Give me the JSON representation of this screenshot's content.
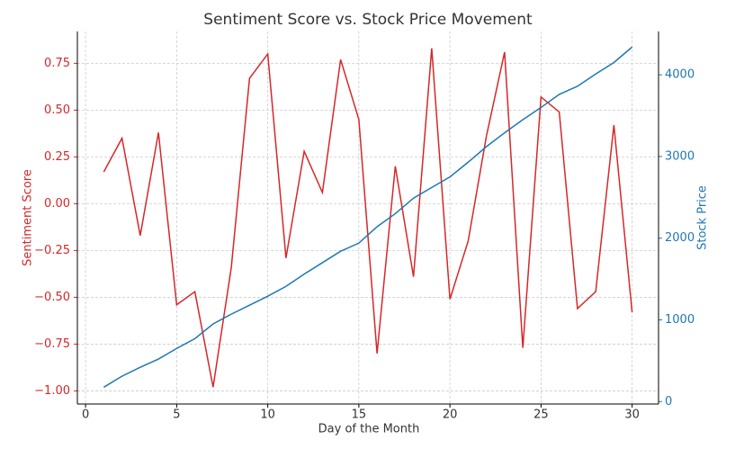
{
  "chart_data": {
    "type": "line",
    "title": "Sentiment Score vs. Stock Price Movement",
    "x_label": "Day of the Month",
    "y_label": "Sentiment Score",
    "y2_label": "Stock Price",
    "x": [
      1,
      2,
      3,
      4,
      5,
      6,
      7,
      8,
      9,
      10,
      11,
      12,
      13,
      14,
      15,
      16,
      17,
      18,
      19,
      20,
      21,
      22,
      23,
      24,
      25,
      26,
      27,
      28,
      29,
      30
    ],
    "series": [
      {
        "name": "Sentiment Score",
        "color": "#d62728",
        "axis": "y",
        "values": [
          0.17,
          0.35,
          -0.17,
          0.38,
          -0.54,
          -0.47,
          -0.98,
          -0.34,
          0.67,
          0.8,
          -0.29,
          0.28,
          0.06,
          0.77,
          0.45,
          -0.8,
          0.2,
          -0.39,
          0.83,
          -0.51,
          -0.2,
          0.36,
          0.81,
          -0.77,
          0.57,
          0.49,
          -0.56,
          -0.47,
          0.42,
          -0.58
        ]
      },
      {
        "name": "Stock Price",
        "color": "#1f77b4",
        "axis": "y2",
        "values": [
          176,
          310,
          420,
          520,
          650,
          770,
          950,
          1070,
          1180,
          1290,
          1410,
          1560,
          1700,
          1840,
          1940,
          2140,
          2300,
          2490,
          2620,
          2750,
          2930,
          3120,
          3290,
          3450,
          3600,
          3760,
          3860,
          4010,
          4150,
          4340
        ]
      }
    ],
    "xlim": [
      -0.45,
      31.45
    ],
    "xticks": [
      0,
      5,
      10,
      15,
      20,
      25,
      30
    ],
    "ylim": [
      -1.07,
      0.92
    ],
    "yticks": [
      {
        "value": -1,
        "label": "−1.00"
      },
      {
        "value": -0.75,
        "label": "−0.75"
      },
      {
        "value": -0.5,
        "label": "−0.50"
      },
      {
        "value": -0.25,
        "label": "−0.25"
      },
      {
        "value": 0,
        "label": "0.00"
      },
      {
        "value": 0.25,
        "label": "0.25"
      },
      {
        "value": 0.5,
        "label": "0.50"
      },
      {
        "value": 0.75,
        "label": "0.75"
      }
    ],
    "y2lim": [
      -30,
      4530
    ],
    "y2ticks": [
      0,
      1000,
      2000,
      3000,
      4000
    ],
    "grid": true
  }
}
